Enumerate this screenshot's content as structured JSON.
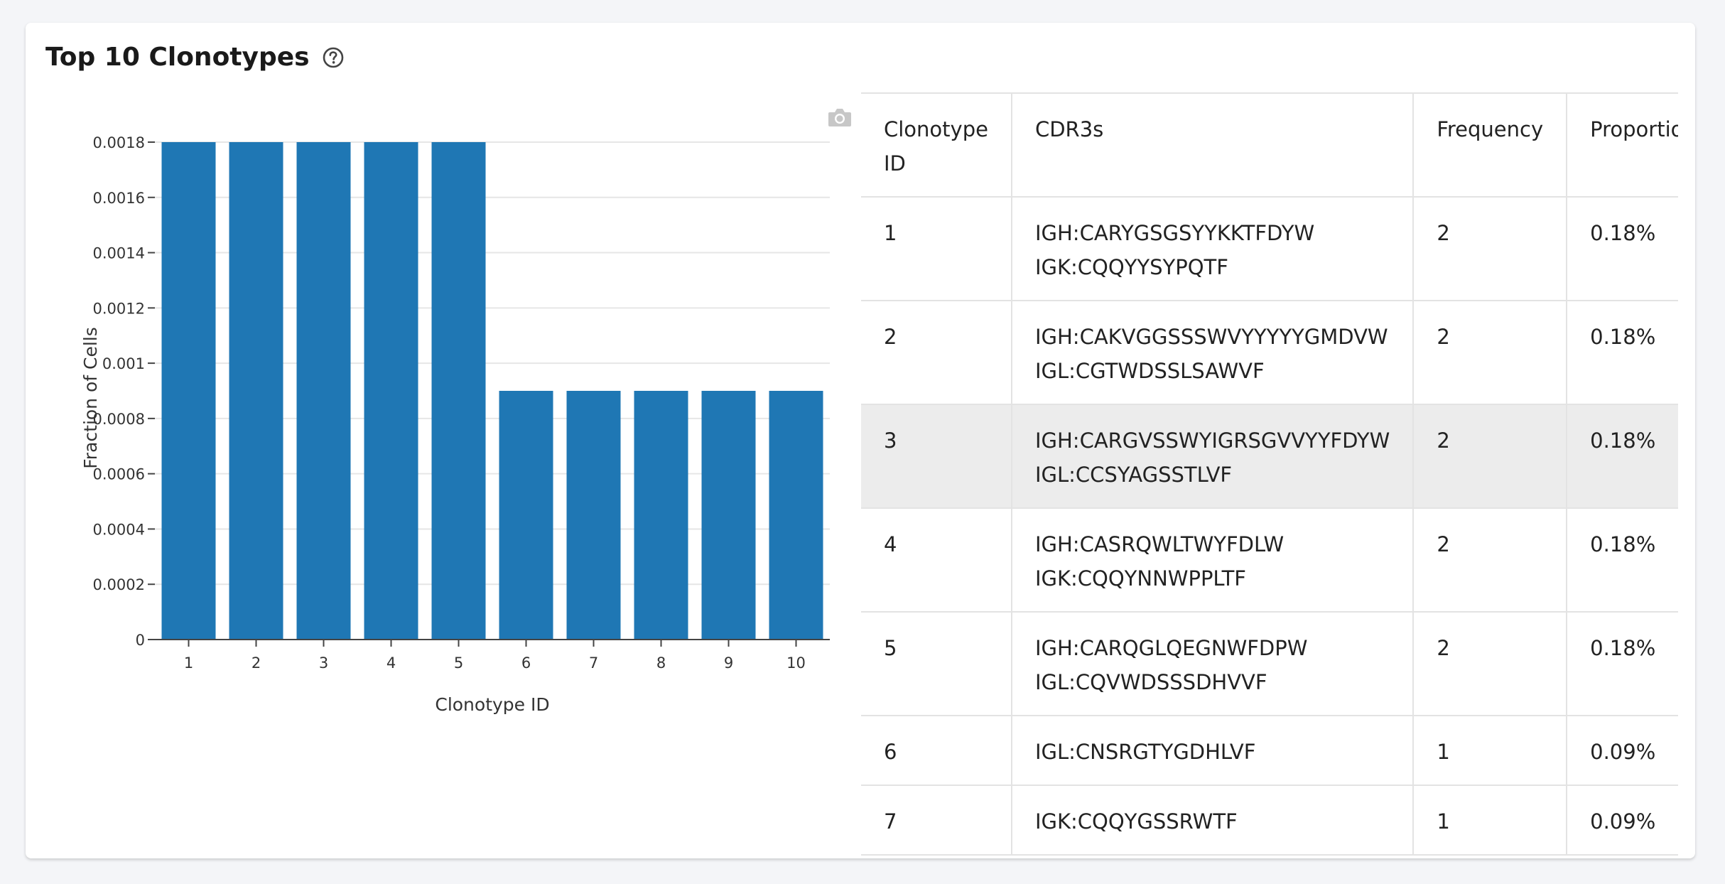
{
  "title": "Top 10 Clonotypes",
  "icons": {
    "help": "question-circle-icon",
    "camera": "camera-icon"
  },
  "colors": {
    "bar": "#1f77b4",
    "highlight_row": "#ececec"
  },
  "chart_data": {
    "type": "bar",
    "categories": [
      "1",
      "2",
      "3",
      "4",
      "5",
      "6",
      "7",
      "8",
      "9",
      "10"
    ],
    "values": [
      0.0018,
      0.0018,
      0.0018,
      0.0018,
      0.0018,
      0.0009,
      0.0009,
      0.0009,
      0.0009,
      0.0009
    ],
    "xlabel": "Clonotype ID",
    "ylabel": "Fraction of Cells",
    "ylim": [
      0,
      0.0018
    ],
    "yticks": [
      "0",
      "0.0002",
      "0.0004",
      "0.0006",
      "0.0008",
      "0.001",
      "0.0012",
      "0.0014",
      "0.0016",
      "0.0018"
    ],
    "grid": true
  },
  "table": {
    "headers": [
      "Clonotype ID",
      "CDR3s",
      "Frequency",
      "Proportion"
    ],
    "rows": [
      {
        "id": "1",
        "cdr3s": [
          "IGH:CARYGSGSYYKKTFDYW",
          "IGK:CQQYYSYPQTF"
        ],
        "frequency": "2",
        "proportion": "0.18%"
      },
      {
        "id": "2",
        "cdr3s": [
          "IGH:CAKVGGSSSWVYYYYYGMDVW",
          "IGL:CGTWDSSLSAWVF"
        ],
        "frequency": "2",
        "proportion": "0.18%"
      },
      {
        "id": "3",
        "cdr3s": [
          "IGH:CARGVSSWYIGRSGVVYYFDYW",
          "IGL:CCSYAGSSTLVF"
        ],
        "frequency": "2",
        "proportion": "0.18%"
      },
      {
        "id": "4",
        "cdr3s": [
          "IGH:CASRQWLTWYFDLW",
          "IGK:CQQYNNWPPLTF"
        ],
        "frequency": "2",
        "proportion": "0.18%"
      },
      {
        "id": "5",
        "cdr3s": [
          "IGH:CARQGLQEGNWFDPW",
          "IGL:CQVWDSSSDHVVF"
        ],
        "frequency": "2",
        "proportion": "0.18%"
      },
      {
        "id": "6",
        "cdr3s": [
          "IGL:CNSRGTYGDHLVF"
        ],
        "frequency": "1",
        "proportion": "0.09%"
      },
      {
        "id": "7",
        "cdr3s": [
          "IGK:CQQYGSSRWTF"
        ],
        "frequency": "1",
        "proportion": "0.09%"
      }
    ]
  }
}
